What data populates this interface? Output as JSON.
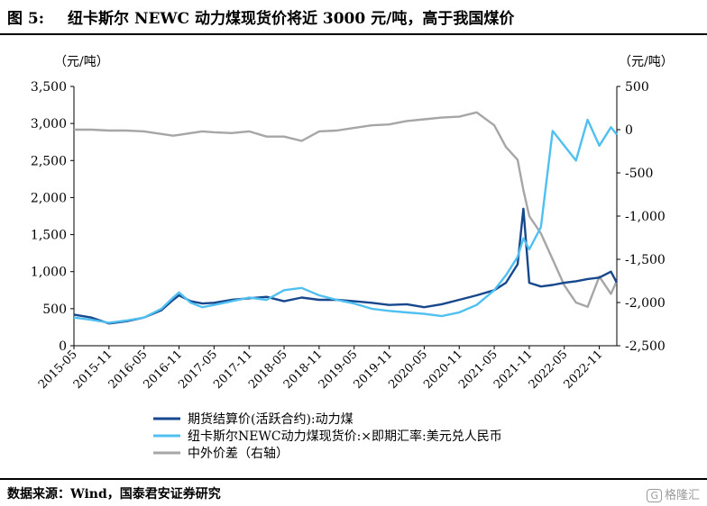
{
  "figure": {
    "number_label": "图 5:",
    "title": "纽卡斯尔 NEWC 动力煤现货价将近 3000 元/吨，高于我国煤价"
  },
  "source": "数据来源：Wind，国泰君安证券研究",
  "watermark": {
    "logo": "G",
    "text": "格隆汇"
  },
  "colors": {
    "futures": "#17478c",
    "newc": "#4fc0f0",
    "spread": "#a6a6a6"
  },
  "chart_data": {
    "type": "line",
    "left_unit": "（元/吨）",
    "right_unit": "（元/吨）",
    "left_axis": {
      "min": 0,
      "max": 3500,
      "ticks": [
        0,
        500,
        1000,
        1500,
        2000,
        2500,
        3000,
        3500
      ],
      "tick_labels": [
        "0",
        "500",
        "1,000",
        "1,500",
        "2,000",
        "2,500",
        "3,000",
        "3,500"
      ]
    },
    "right_axis": {
      "min": -2500,
      "max": 500,
      "ticks": [
        -2500,
        -2000,
        -1500,
        -1000,
        -500,
        0,
        500
      ],
      "tick_labels": [
        "-2,500",
        "-2,000",
        "-1,500",
        "-1,000",
        "-500",
        "0",
        "500"
      ]
    },
    "x_axis": {
      "start": "2015-05",
      "end": "2023-02",
      "tick_labels": [
        "2015-05",
        "2015-11",
        "2016-05",
        "2016-11",
        "2017-05",
        "2017-11",
        "2018-05",
        "2018-11",
        "2019-05",
        "2019-11",
        "2020-05",
        "2020-11",
        "2021-05",
        "2021-11",
        "2022-05",
        "2022-11"
      ]
    },
    "x": [
      "2015-05",
      "2015-08",
      "2015-11",
      "2016-02",
      "2016-05",
      "2016-08",
      "2016-10",
      "2016-11",
      "2017-01",
      "2017-03",
      "2017-05",
      "2017-08",
      "2017-11",
      "2018-02",
      "2018-05",
      "2018-08",
      "2018-11",
      "2019-02",
      "2019-05",
      "2019-08",
      "2019-11",
      "2020-02",
      "2020-05",
      "2020-08",
      "2020-11",
      "2021-02",
      "2021-05",
      "2021-07",
      "2021-09",
      "2021-10",
      "2021-11",
      "2022-01",
      "2022-03",
      "2022-05",
      "2022-07",
      "2022-09",
      "2022-11",
      "2023-01",
      "2023-02"
    ],
    "series": [
      {
        "name": "期货结算价(活跃合约):动力煤",
        "axis": "left",
        "values": [
          420,
          380,
          300,
          330,
          380,
          480,
          620,
          680,
          600,
          570,
          580,
          620,
          640,
          660,
          600,
          650,
          620,
          620,
          600,
          580,
          550,
          560,
          520,
          560,
          620,
          680,
          750,
          850,
          1100,
          1850,
          850,
          800,
          820,
          850,
          870,
          900,
          920,
          1000,
          850
        ]
      },
      {
        "name": "纽卡斯尔NEWC动力煤现货价:×即期汇率:美元兑人民币",
        "axis": "left",
        "values": [
          380,
          350,
          310,
          340,
          380,
          500,
          650,
          720,
          580,
          520,
          550,
          600,
          650,
          620,
          750,
          780,
          680,
          620,
          570,
          500,
          470,
          450,
          430,
          400,
          450,
          550,
          750,
          950,
          1200,
          1450,
          1300,
          1600,
          2900,
          2700,
          2500,
          3050,
          2700,
          2950,
          2850
        ]
      },
      {
        "name": "中外价差（右轴）",
        "axis": "right",
        "values": [
          0,
          0,
          -10,
          -10,
          -20,
          -50,
          -70,
          -60,
          -40,
          -20,
          -30,
          -40,
          -20,
          -80,
          -80,
          -130,
          -20,
          -10,
          20,
          50,
          60,
          100,
          120,
          140,
          150,
          200,
          50,
          -200,
          -350,
          -700,
          -1000,
          -1200,
          -1500,
          -1800,
          -2000,
          -2050,
          -1700,
          -1900,
          -1750
        ]
      }
    ]
  }
}
